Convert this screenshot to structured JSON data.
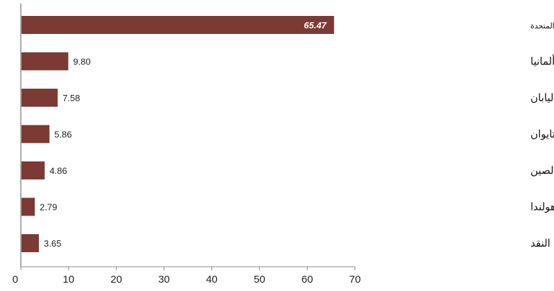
{
  "chart_data": {
    "type": "bar",
    "orientation": "horizontal",
    "categories": [
      "الولايات المتحدة",
      "ألمانيا",
      "اليابان",
      "تايوان",
      "الصين",
      "هولندا",
      "النقد"
    ],
    "values": [
      65.47,
      9.8,
      7.58,
      5.86,
      4.86,
      2.79,
      3.65
    ],
    "value_labels": [
      "65.47",
      "9.80",
      "7.58",
      "5.86",
      "4.86",
      "2.79",
      "3.65"
    ],
    "x_ticks": [
      "0",
      "10",
      "20",
      "30",
      "40",
      "50",
      "60",
      "70"
    ],
    "xlim": [
      0,
      70
    ],
    "bar_color": "#7b3a33",
    "grid": false,
    "legend": "none",
    "category_labels_position": "right"
  }
}
